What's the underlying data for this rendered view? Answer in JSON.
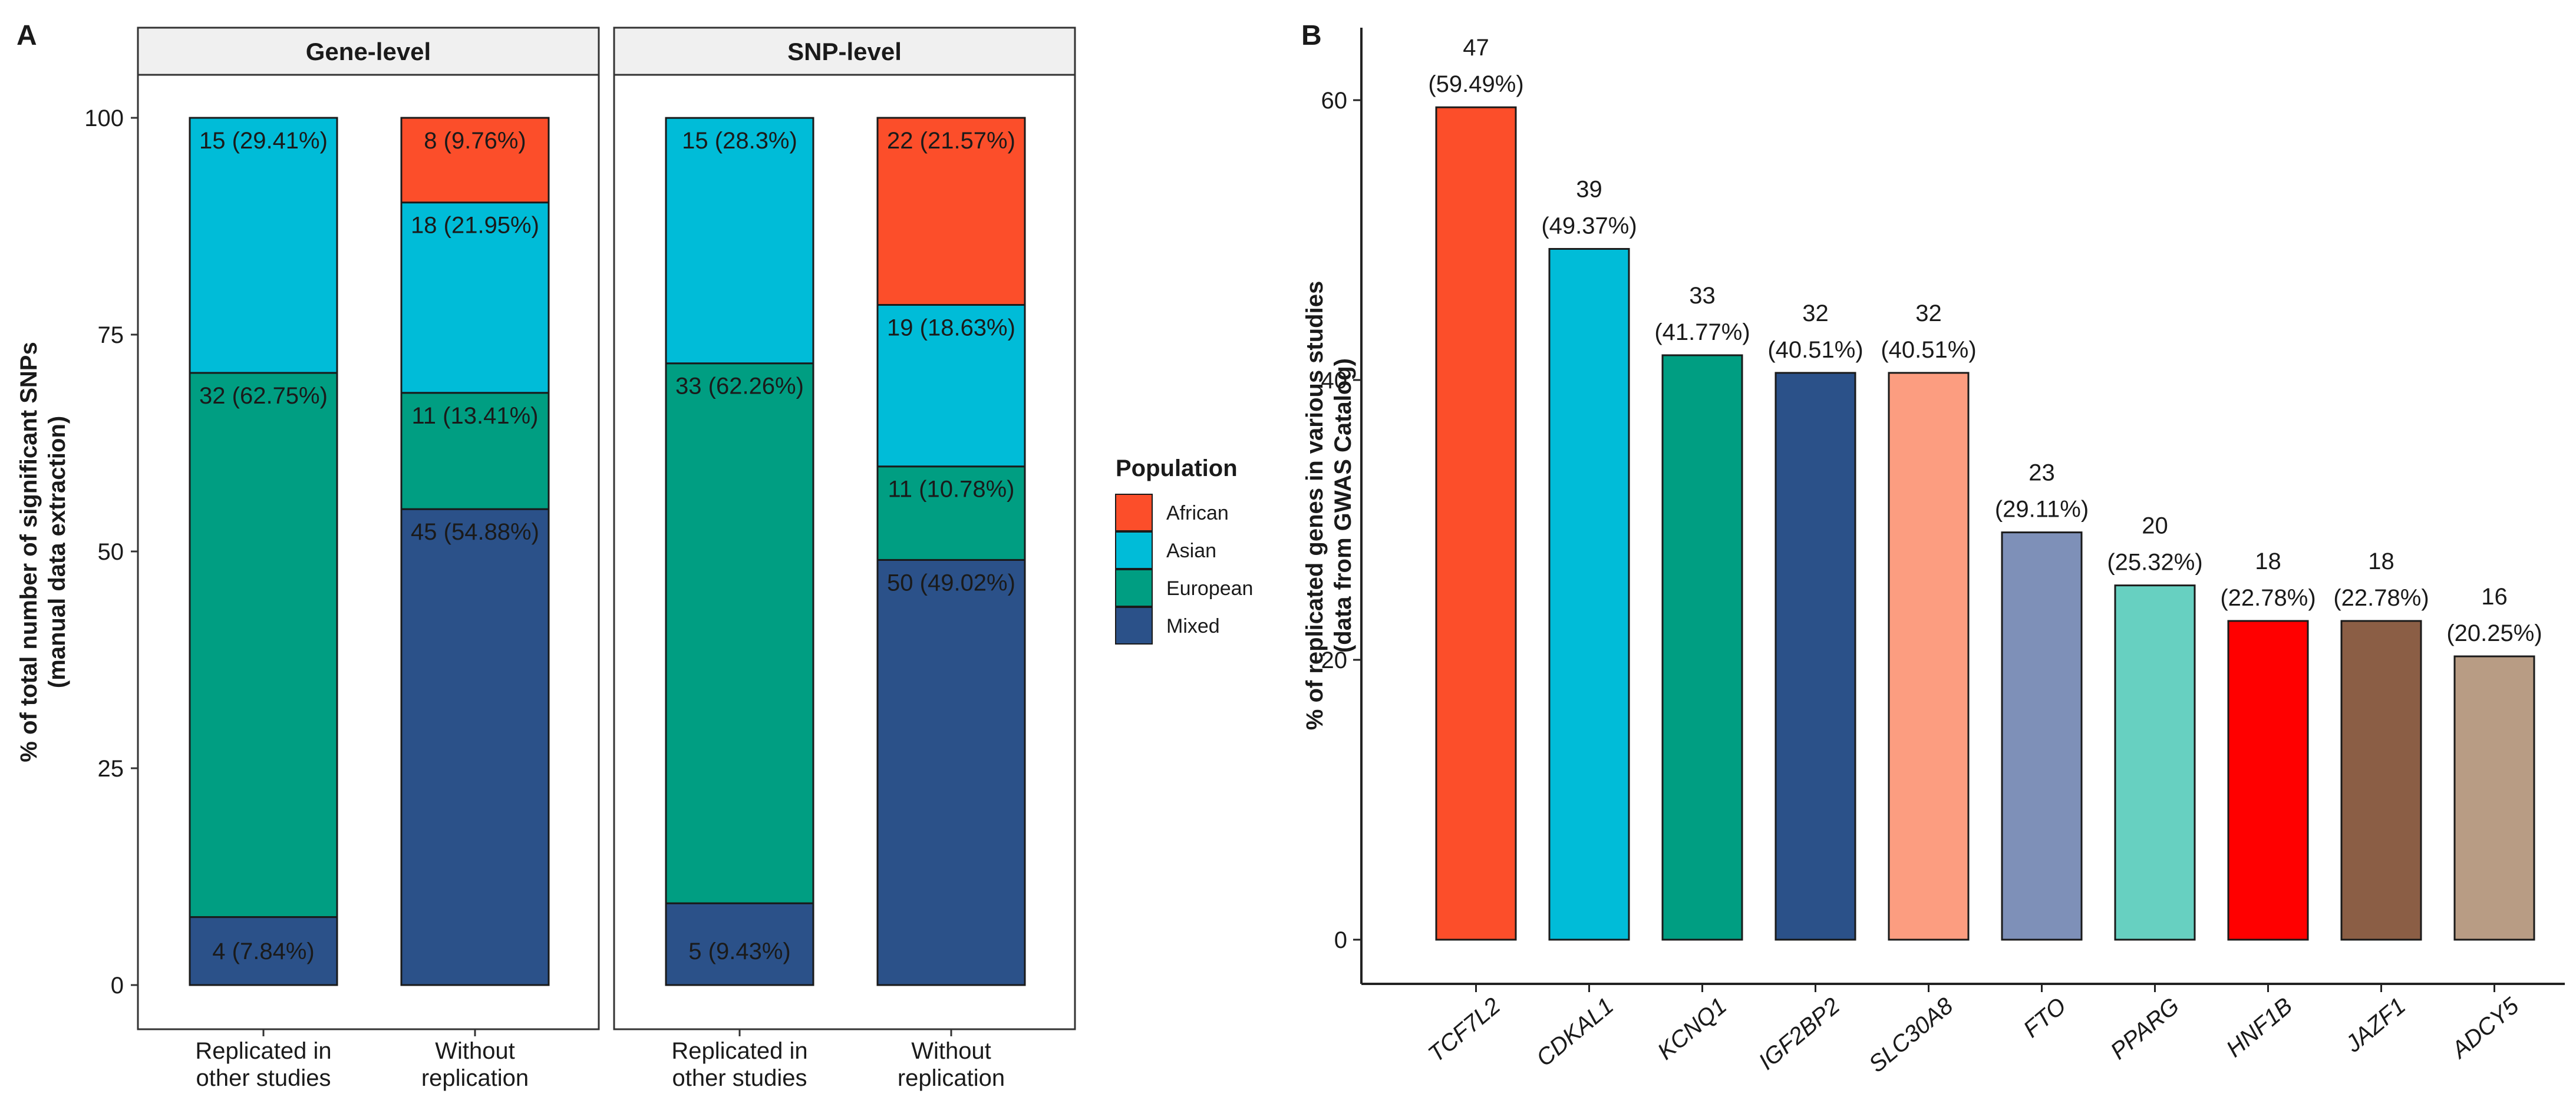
{
  "chart_data": [
    {
      "panel": "A",
      "type": "bar",
      "stacked": true,
      "facets": [
        "Gene-level",
        "SNP-level"
      ],
      "categories": [
        "Replicated in other studies",
        "Without replication"
      ],
      "category_lines": [
        [
          "Replicated in",
          "other studies"
        ],
        [
          "Without",
          "replication"
        ]
      ],
      "ylabel_lines": [
        "% of total number of significant SNPs",
        "(manual data extraction)"
      ],
      "ylim": [
        0,
        100
      ],
      "yticks": [
        "0",
        "25",
        "50",
        "75",
        "100"
      ],
      "legend": {
        "title": "Population",
        "placement": "right",
        "entries": [
          {
            "name": "African",
            "color": "#FC4E2A"
          },
          {
            "name": "Asian",
            "color": "#00BCD8"
          },
          {
            "name": "European",
            "color": "#009E82"
          },
          {
            "name": "Mixed",
            "color": "#2B5189"
          }
        ]
      },
      "stacks": [
        {
          "facet": 0,
          "category": 0,
          "segments": [
            {
              "population": "Mixed",
              "pct": 7.84,
              "label": "4 (7.84%)"
            },
            {
              "population": "European",
              "pct": 62.75,
              "label": "32 (62.75%)"
            },
            {
              "population": "Asian",
              "pct": 29.41,
              "label": "15 (29.41%)"
            }
          ]
        },
        {
          "facet": 0,
          "category": 1,
          "segments": [
            {
              "population": "Mixed",
              "pct": 54.88,
              "label": "45 (54.88%)"
            },
            {
              "population": "European",
              "pct": 13.41,
              "label": "11 (13.41%)"
            },
            {
              "population": "Asian",
              "pct": 21.95,
              "label": "18 (21.95%)"
            },
            {
              "population": "African",
              "pct": 9.76,
              "label": "8 (9.76%)"
            }
          ]
        },
        {
          "facet": 1,
          "category": 0,
          "segments": [
            {
              "population": "Mixed",
              "pct": 9.43,
              "label": "5 (9.43%)"
            },
            {
              "population": "European",
              "pct": 62.26,
              "label": "33 (62.26%)"
            },
            {
              "population": "Asian",
              "pct": 28.3,
              "label": "15 (28.3%)"
            }
          ]
        },
        {
          "facet": 1,
          "category": 1,
          "segments": [
            {
              "population": "Mixed",
              "pct": 49.02,
              "label": "50 (49.02%)"
            },
            {
              "population": "European",
              "pct": 10.78,
              "label": "11 (10.78%)"
            },
            {
              "population": "Asian",
              "pct": 18.63,
              "label": "19 (18.63%)"
            },
            {
              "population": "African",
              "pct": 21.57,
              "label": "22 (21.57%)"
            }
          ]
        }
      ]
    },
    {
      "panel": "B",
      "type": "bar",
      "categories": [
        "TCF7L2",
        "CDKAL1",
        "KCNQ1",
        "IGF2BP2",
        "SLC30A8",
        "FTO",
        "PPARG",
        "HNF1B",
        "JAZF1",
        "ADCY5"
      ],
      "values": [
        59.49,
        49.37,
        41.77,
        40.51,
        40.51,
        29.11,
        25.32,
        22.78,
        22.78,
        20.25
      ],
      "counts": [
        "47",
        "39",
        "33",
        "32",
        "32",
        "23",
        "20",
        "18",
        "18",
        "16"
      ],
      "pct_labels": [
        "(59.49%)",
        "(49.37%)",
        "(41.77%)",
        "(40.51%)",
        "(40.51%)",
        "(29.11%)",
        "(25.32%)",
        "(22.78%)",
        "(22.78%)",
        "(20.25%)"
      ],
      "colors": [
        "#FC4E2A",
        "#00BCD8",
        "#009E82",
        "#2B5189",
        "#FC9D80",
        "#7E90B8",
        "#67D0C1",
        "#FF0000",
        "#8B5E45",
        "#B89C84"
      ],
      "ylabel_lines": [
        "% of replicated genes in various studies",
        "(data from GWAS Catalog)"
      ],
      "ylim": [
        0,
        65
      ],
      "yticks": [
        "0",
        "20",
        "40",
        "60"
      ]
    }
  ],
  "panel_letters": [
    "A",
    "B"
  ]
}
